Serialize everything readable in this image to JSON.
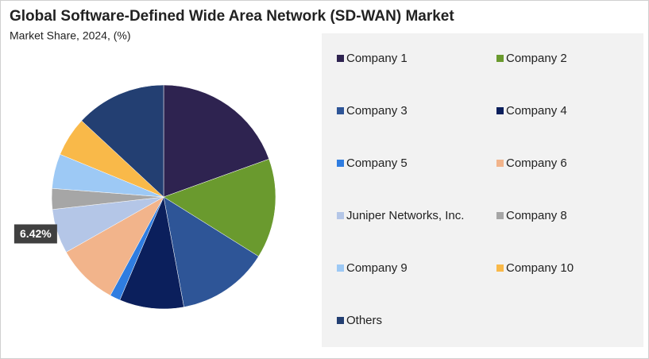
{
  "chart_data": {
    "type": "pie",
    "title": "Global Software-Defined Wide Area Network (SD-WAN) Market",
    "subtitle": "Market Share, 2024, (%)",
    "categories": [
      "Company 1",
      "Company 2",
      "Company 3",
      "Company 4",
      "Company 5",
      "Company 6",
      "Juniper Networks, Inc.",
      "Company 8",
      "Company 9",
      "Company 10",
      "Others"
    ],
    "values": [
      19.5,
      14.4,
      13.2,
      9.3,
      1.5,
      8.9,
      6.42,
      3.0,
      5.0,
      5.7,
      13.08
    ],
    "value_labels": [
      null,
      null,
      null,
      null,
      null,
      null,
      "6.42%",
      null,
      null,
      null,
      null
    ],
    "colors": [
      "#2e2350",
      "#6a9a2e",
      "#2e5597",
      "#0b1f5c",
      "#2f7de1",
      "#f2b48b",
      "#b4c6e7",
      "#a6a6a6",
      "#9dc9f5",
      "#f9b949",
      "#233f72"
    ],
    "legend": "right"
  }
}
